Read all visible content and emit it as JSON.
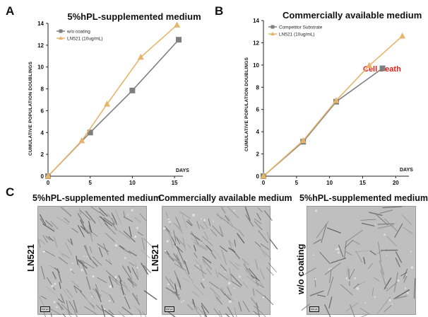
{
  "panels": {
    "a": "A",
    "b": "B",
    "c": "C"
  },
  "colors": {
    "series_gray": "#7f7f7f",
    "series_orange": "#e7b46b",
    "cell_death": "#e0201a"
  },
  "annotation": {
    "cell_death": "Cell Death"
  },
  "chart_data": [
    {
      "type": "line",
      "title": "5%hPL-supplemented medium",
      "xlabel": "DAYS",
      "ylabel": "CUMULATIVE POPULATION DOUBLINGS",
      "xlim": [
        0,
        16
      ],
      "ylim": [
        0,
        14
      ],
      "xticks": [
        0,
        5,
        10,
        15
      ],
      "yticks": [
        0,
        2,
        4,
        6,
        8,
        10,
        12,
        14
      ],
      "legend_position": "top-left",
      "series": [
        {
          "name": "w/o coating",
          "color": "#7f7f7f",
          "marker": "square",
          "x": [
            0,
            5,
            10,
            15.5
          ],
          "y": [
            0,
            4.0,
            7.85,
            12.5
          ]
        },
        {
          "name": "LN521 (10ug/mL)",
          "color": "#e7b46b",
          "marker": "triangle",
          "x": [
            0,
            4,
            7,
            11,
            15.3
          ],
          "y": [
            0,
            3.25,
            6.6,
            10.9,
            13.85
          ]
        }
      ]
    },
    {
      "type": "line",
      "title": "Commercially available medium",
      "xlabel": "DAYS",
      "ylabel": "CUMULATIVE POPULATION DOUBLINGS",
      "xlim": [
        0,
        22
      ],
      "ylim": [
        0,
        14
      ],
      "xticks": [
        0,
        5,
        10,
        15,
        20
      ],
      "yticks": [
        0,
        2,
        4,
        6,
        8,
        10,
        12,
        14
      ],
      "legend_position": "top-left",
      "series": [
        {
          "name": "Competitor Substrate",
          "color": "#7f7f7f",
          "marker": "square",
          "x": [
            0,
            6,
            11,
            18
          ],
          "y": [
            0,
            3.1,
            6.7,
            9.7
          ]
        },
        {
          "name": "LN521 (10ug/mL)",
          "color": "#e7b46b",
          "marker": "triangle",
          "x": [
            0,
            6,
            11,
            16,
            21
          ],
          "y": [
            0,
            3.2,
            6.8,
            9.95,
            12.6
          ]
        }
      ]
    }
  ],
  "micrographs": [
    {
      "caption": "5%hPL-supplemented medium",
      "label": "LN521",
      "scale": "100 µm"
    },
    {
      "caption": "Commercially available medium",
      "label": "LN521",
      "scale": "100 µm"
    },
    {
      "caption": "5%hPL-supplemented medium",
      "label": "w/o coating",
      "scale": "100 µm"
    }
  ]
}
